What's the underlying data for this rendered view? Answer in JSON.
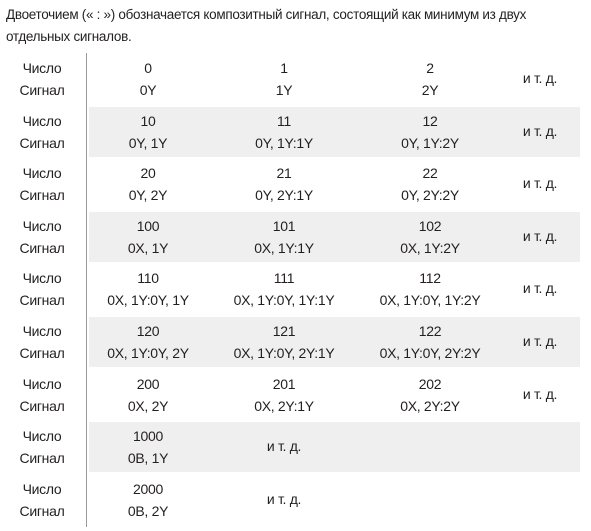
{
  "intro": "Двоеточием (« : ») обозначается композитный сигнал, состоящий как минимум из двух отдельных сигналов.",
  "table": {
    "rows": [
      {
        "label_number": "Число",
        "label_signal": "Сигнал",
        "cells": [
          {
            "number": "0",
            "signal": "0Y"
          },
          {
            "number": "1",
            "signal": "1Y"
          },
          {
            "number": "2",
            "signal": "2Y"
          }
        ],
        "etc": "и т. д."
      },
      {
        "label_number": "Число",
        "label_signal": "Сигнал",
        "cells": [
          {
            "number": "10",
            "signal": "0Y, 1Y"
          },
          {
            "number": "11",
            "signal": "0Y, 1Y:1Y"
          },
          {
            "number": "12",
            "signal": "0Y, 1Y:2Y"
          }
        ],
        "etc": "и т. д."
      },
      {
        "label_number": "Число",
        "label_signal": "Сигнал",
        "cells": [
          {
            "number": "20",
            "signal": "0Y, 2Y"
          },
          {
            "number": "21",
            "signal": "0Y, 2Y:1Y"
          },
          {
            "number": "22",
            "signal": "0Y, 2Y:2Y"
          }
        ],
        "etc": "и т. д."
      },
      {
        "label_number": "Число",
        "label_signal": "Сигнал",
        "cells": [
          {
            "number": "100",
            "signal": "0X, 1Y"
          },
          {
            "number": "101",
            "signal": "0X, 1Y:1Y"
          },
          {
            "number": "102",
            "signal": "0X, 1Y:2Y"
          }
        ],
        "etc": "и т. д."
      },
      {
        "label_number": "Число",
        "label_signal": "Сигнал",
        "cells": [
          {
            "number": "110",
            "signal": "0X, 1Y:0Y, 1Y"
          },
          {
            "number": "111",
            "signal": "0X, 1Y:0Y, 1Y:1Y"
          },
          {
            "number": "112",
            "signal": "0X, 1Y:0Y, 1Y:2Y"
          }
        ],
        "etc": "и т. д."
      },
      {
        "label_number": "Число",
        "label_signal": "Сигнал",
        "cells": [
          {
            "number": "120",
            "signal": "0X, 1Y:0Y, 2Y"
          },
          {
            "number": "121",
            "signal": "0X, 1Y:0Y, 2Y:1Y"
          },
          {
            "number": "122",
            "signal": "0X, 1Y:0Y, 2Y:2Y"
          }
        ],
        "etc": "и т. д."
      },
      {
        "label_number": "Число",
        "label_signal": "Сигнал",
        "cells": [
          {
            "number": "200",
            "signal": "0X, 2Y"
          },
          {
            "number": "201",
            "signal": "0X, 2Y:1Y"
          },
          {
            "number": "202",
            "signal": "0X, 2Y:2Y"
          }
        ],
        "etc": "и т. д."
      },
      {
        "label_number": "Число",
        "label_signal": "Сигнал",
        "cells": [
          {
            "number": "1000",
            "signal": "0B, 1Y"
          }
        ],
        "etc": "и т. д."
      },
      {
        "label_number": "Число",
        "label_signal": "Сигнал",
        "cells": [
          {
            "number": "2000",
            "signal": "0B, 2Y"
          }
        ],
        "etc": "и т. д."
      }
    ]
  }
}
